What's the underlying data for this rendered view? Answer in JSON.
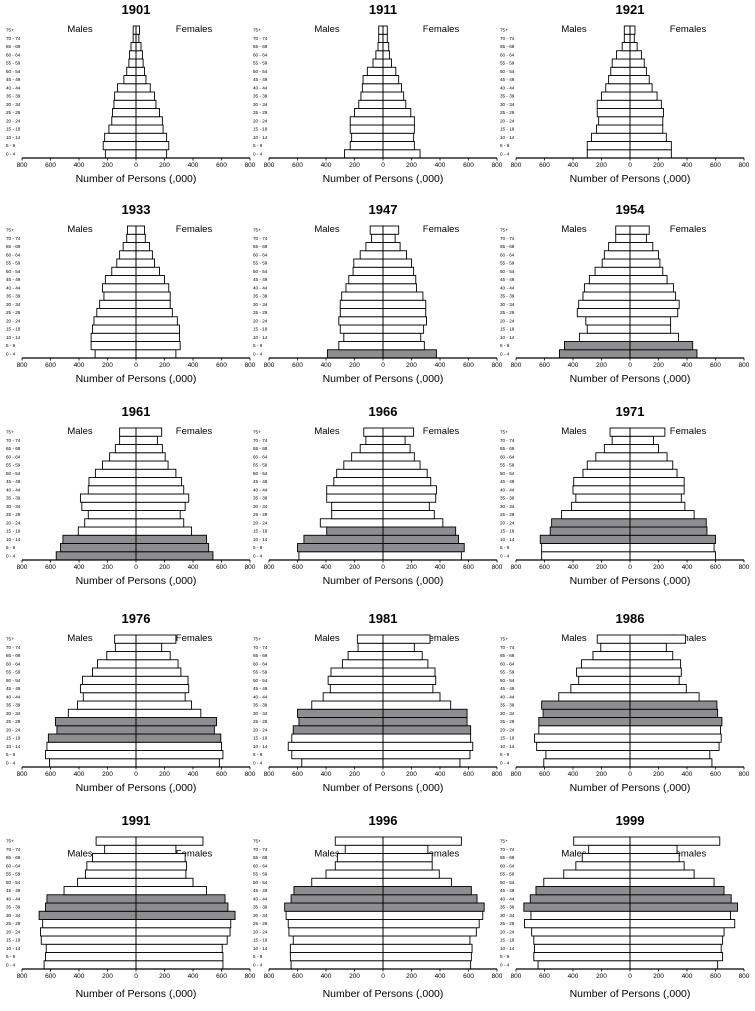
{
  "age_groups": [
    "0 - 4",
    "5 - 9",
    "10 - 14",
    "15 - 19",
    "20 - 24",
    "25 - 29",
    "30 - 34",
    "35 - 39",
    "40 - 44",
    "45 - 49",
    "50 - 54",
    "55 - 59",
    "60 - 64",
    "65 - 69",
    "70 - 74",
    "75+"
  ],
  "labels": {
    "males": "Males",
    "females": "Females"
  },
  "xtick_labels": [
    "800",
    "600",
    "400",
    "200",
    "0",
    "200",
    "400",
    "600",
    "800"
  ],
  "colors": {
    "bar": "#ffffff",
    "highlight": "#8e8e92",
    "stroke": "#000000"
  },
  "chart_data": [
    {
      "type": "bar",
      "orientation": "population-pyramid",
      "title": "1901",
      "xlabel": "Number of Persons (,000)",
      "xlim": [
        -800,
        800
      ],
      "series": [
        {
          "name": "Males",
          "values": [
            215,
            230,
            220,
            190,
            170,
            165,
            155,
            150,
            130,
            85,
            65,
            50,
            45,
            35,
            20,
            20
          ]
        },
        {
          "name": "Females",
          "values": [
            215,
            230,
            215,
            190,
            185,
            165,
            140,
            130,
            100,
            70,
            60,
            50,
            45,
            35,
            20,
            25
          ]
        }
      ],
      "highlighted": []
    },
    {
      "type": "bar",
      "orientation": "population-pyramid",
      "title": "1911",
      "xlabel": "Number of Persons (,000)",
      "xlim": [
        -800,
        800
      ],
      "series": [
        {
          "name": "Males",
          "values": [
            270,
            230,
            220,
            230,
            230,
            200,
            170,
            155,
            145,
            140,
            110,
            70,
            50,
            35,
            30,
            30
          ]
        },
        {
          "name": "Females",
          "values": [
            260,
            220,
            215,
            220,
            220,
            195,
            160,
            145,
            130,
            110,
            90,
            60,
            45,
            40,
            30,
            30
          ]
        }
      ],
      "highlighted": []
    },
    {
      "type": "bar",
      "orientation": "population-pyramid",
      "title": "1921",
      "xlabel": "Number of Persons (,000)",
      "xlim": [
        -800,
        800
      ],
      "series": [
        {
          "name": "Males",
          "values": [
            300,
            300,
            270,
            235,
            220,
            230,
            230,
            200,
            170,
            150,
            135,
            125,
            95,
            55,
            40,
            40
          ]
        },
        {
          "name": "Females",
          "values": [
            290,
            290,
            255,
            230,
            230,
            235,
            220,
            190,
            155,
            135,
            115,
            100,
            80,
            50,
            30,
            35
          ]
        }
      ],
      "highlighted": []
    },
    {
      "type": "bar",
      "orientation": "population-pyramid",
      "title": "1933",
      "xlabel": "Number of Persons (,000)",
      "xlim": [
        -800,
        800
      ],
      "series": [
        {
          "name": "Males",
          "values": [
            287,
            315,
            315,
            305,
            295,
            275,
            255,
            225,
            235,
            215,
            170,
            135,
            115,
            90,
            65,
            60
          ]
        },
        {
          "name": "Females",
          "values": [
            280,
            310,
            305,
            305,
            290,
            255,
            240,
            240,
            230,
            200,
            165,
            130,
            115,
            95,
            65,
            60
          ]
        }
      ],
      "highlighted": []
    },
    {
      "type": "bar",
      "orientation": "population-pyramid",
      "title": "1947",
      "xlabel": "Number of Persons (,000)",
      "xlim": [
        -800,
        800
      ],
      "series": [
        {
          "name": "Males",
          "values": [
            390,
            310,
            275,
            300,
            310,
            300,
            300,
            290,
            260,
            240,
            210,
            205,
            160,
            120,
            80,
            90
          ]
        },
        {
          "name": "Females",
          "values": [
            375,
            290,
            265,
            285,
            305,
            300,
            300,
            280,
            235,
            230,
            215,
            200,
            165,
            120,
            85,
            110
          ]
        }
      ],
      "highlighted": [
        "0 - 4"
      ]
    },
    {
      "type": "bar",
      "orientation": "population-pyramid",
      "title": "1954",
      "xlabel": "Number of Persons (,000)",
      "xlim": [
        -800,
        800
      ],
      "series": [
        {
          "name": "Males",
          "values": [
            495,
            460,
            355,
            300,
            310,
            370,
            360,
            330,
            320,
            285,
            245,
            195,
            180,
            150,
            100,
            100
          ]
        },
        {
          "name": "Females",
          "values": [
            470,
            440,
            340,
            285,
            285,
            335,
            345,
            320,
            305,
            260,
            230,
            210,
            200,
            160,
            115,
            135
          ]
        }
      ],
      "highlighted": [
        "0 - 4",
        "5 - 9"
      ]
    },
    {
      "type": "bar",
      "orientation": "population-pyramid",
      "title": "1961",
      "xlabel": "Number of Persons (,000)",
      "xlim": [
        -800,
        800
      ],
      "series": [
        {
          "name": "Males",
          "values": [
            560,
            530,
            513,
            405,
            360,
            335,
            380,
            390,
            335,
            330,
            285,
            235,
            185,
            145,
            115,
            115
          ]
        },
        {
          "name": "Females",
          "values": [
            540,
            510,
            495,
            390,
            335,
            310,
            345,
            370,
            335,
            320,
            280,
            225,
            205,
            185,
            150,
            180
          ]
        }
      ],
      "highlighted": [
        "0 - 4",
        "5 - 9",
        "10 - 14"
      ]
    },
    {
      "type": "bar",
      "orientation": "population-pyramid",
      "title": "1966",
      "xlabel": "Number of Persons (,000)",
      "xlim": [
        -800,
        800
      ],
      "series": [
        {
          "name": "Males",
          "values": [
            590,
            600,
            555,
            395,
            440,
            360,
            360,
            395,
            395,
            345,
            325,
            275,
            220,
            160,
            120,
            135
          ]
        },
        {
          "name": "Females",
          "values": [
            550,
            570,
            530,
            510,
            420,
            360,
            325,
            370,
            375,
            335,
            310,
            260,
            220,
            190,
            155,
            215
          ]
        }
      ],
      "highlighted": [
        "5 - 9",
        "10 - 14",
        "15 - 19"
      ]
    },
    {
      "type": "bar",
      "orientation": "population-pyramid",
      "title": "1971",
      "xlabel": "Number of Persons (,000)",
      "xlim": [
        -800,
        800
      ],
      "series": [
        {
          "name": "Males",
          "values": [
            620,
            620,
            630,
            560,
            550,
            480,
            410,
            380,
            400,
            395,
            330,
            300,
            240,
            180,
            125,
            140
          ]
        },
        {
          "name": "Females",
          "values": [
            600,
            590,
            600,
            540,
            535,
            450,
            385,
            360,
            380,
            380,
            330,
            300,
            260,
            200,
            165,
            245
          ]
        }
      ],
      "highlighted": [
        "10 - 14",
        "15 - 19",
        "20 - 24"
      ]
    },
    {
      "type": "bar",
      "orientation": "population-pyramid",
      "title": "1976",
      "xlabel": "Number of Persons (,000)",
      "xlim": [
        -800,
        800
      ],
      "series": [
        {
          "name": "Males",
          "values": [
            607,
            635,
            625,
            615,
            555,
            565,
            475,
            410,
            370,
            390,
            375,
            305,
            270,
            205,
            145,
            150
          ]
        },
        {
          "name": "Females",
          "values": [
            585,
            610,
            600,
            595,
            550,
            565,
            455,
            390,
            345,
            370,
            365,
            315,
            295,
            240,
            180,
            280
          ]
        }
      ],
      "highlighted": [
        "15 - 19",
        "20 - 24",
        "25 - 29"
      ]
    },
    {
      "type": "bar",
      "orientation": "population-pyramid",
      "title": "1981",
      "xlabel": "Number of Persons (,000)",
      "xlim": [
        -800,
        800
      ],
      "series": [
        {
          "name": "Males",
          "values": [
            570,
            640,
            665,
            640,
            630,
            590,
            600,
            500,
            420,
            370,
            385,
            365,
            285,
            245,
            175,
            180
          ]
        },
        {
          "name": "Females",
          "values": [
            540,
            610,
            630,
            615,
            615,
            590,
            590,
            475,
            400,
            350,
            370,
            365,
            315,
            275,
            220,
            330
          ]
        }
      ],
      "highlighted": [
        "20 - 24",
        "25 - 29",
        "30 - 34"
      ]
    },
    {
      "type": "bar",
      "orientation": "population-pyramid",
      "title": "1986",
      "xlabel": "Number of Persons (,000)",
      "xlim": [
        -800,
        800
      ],
      "series": [
        {
          "name": "Males",
          "values": [
            605,
            590,
            655,
            670,
            640,
            640,
            610,
            620,
            500,
            415,
            360,
            375,
            340,
            260,
            205,
            230
          ]
        },
        {
          "name": "Females",
          "values": [
            575,
            560,
            625,
            640,
            635,
            645,
            615,
            610,
            485,
            395,
            345,
            360,
            355,
            300,
            255,
            390
          ]
        }
      ],
      "highlighted": [
        "25 - 29",
        "30 - 34",
        "35 - 39"
      ]
    },
    {
      "type": "bar",
      "orientation": "population-pyramid",
      "title": "1991",
      "xlabel": "Number of Persons (,000)",
      "xlim": [
        -800,
        800
      ],
      "series": [
        {
          "name": "Males",
          "values": [
            645,
            635,
            630,
            665,
            670,
            655,
            680,
            635,
            625,
            505,
            410,
            355,
            345,
            305,
            220,
            280
          ]
        },
        {
          "name": "Females",
          "values": [
            610,
            610,
            605,
            640,
            660,
            665,
            695,
            645,
            625,
            495,
            400,
            350,
            355,
            345,
            280,
            470
          ]
        }
      ],
      "highlighted": [
        "30 - 34",
        "35 - 39",
        "40 - 44"
      ]
    },
    {
      "type": "bar",
      "orientation": "population-pyramid",
      "title": "1996",
      "xlabel": "Number of Persons (,000)",
      "xlim": [
        -800,
        800
      ],
      "series": [
        {
          "name": "Males",
          "values": [
            645,
            650,
            650,
            630,
            660,
            665,
            680,
            690,
            645,
            625,
            500,
            400,
            335,
            320,
            265,
            335
          ]
        },
        {
          "name": "Females",
          "values": [
            615,
            620,
            625,
            610,
            655,
            675,
            700,
            710,
            660,
            620,
            480,
            395,
            345,
            345,
            315,
            550
          ]
        }
      ],
      "highlighted": [
        "35 - 39",
        "40 - 44",
        "45 - 49"
      ]
    },
    {
      "type": "bar",
      "orientation": "population-pyramid",
      "title": "1999",
      "xlabel": "Number of Persons (,000)",
      "xlim": [
        -800,
        800
      ],
      "series": [
        {
          "name": "Males",
          "values": [
            645,
            675,
            670,
            675,
            690,
            740,
            695,
            745,
            700,
            660,
            605,
            465,
            380,
            335,
            290,
            395
          ]
        },
        {
          "name": "Females",
          "values": [
            615,
            650,
            640,
            650,
            660,
            735,
            705,
            755,
            710,
            660,
            590,
            450,
            380,
            345,
            330,
            630
          ]
        }
      ],
      "highlighted": [
        "35 - 39",
        "40 - 44",
        "45 - 49"
      ]
    }
  ]
}
